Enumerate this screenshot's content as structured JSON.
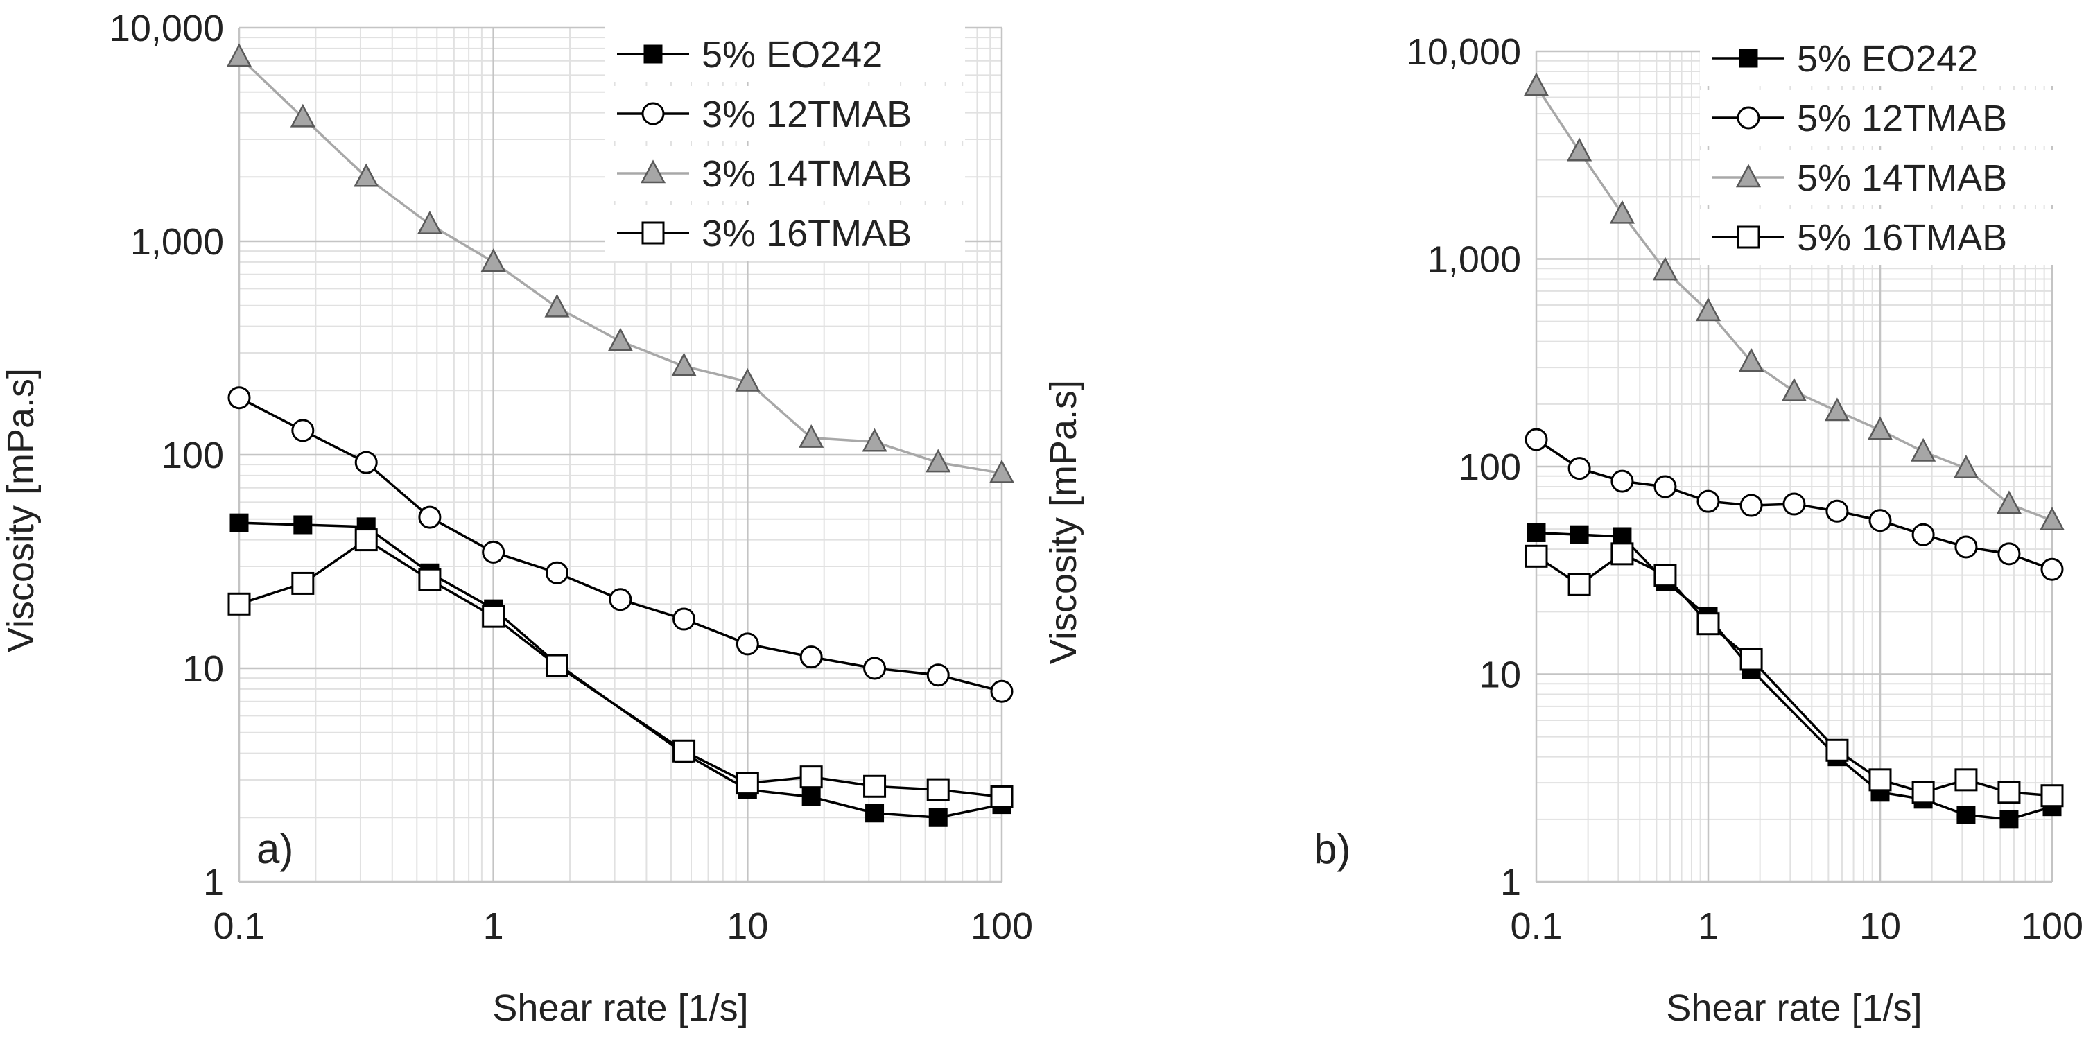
{
  "chart_data": [
    {
      "type": "line",
      "panel_label": "a)",
      "xscale": "log",
      "yscale": "log",
      "xlim": [
        0.1,
        100
      ],
      "ylim": [
        1,
        10000
      ],
      "xlabel": "Shear rate [1/s]",
      "ylabel": "Viscosity [mPa.s]",
      "xticks": [
        0.1,
        1,
        10,
        100
      ],
      "xtick_labels": [
        "0.1",
        "1",
        "10",
        "100"
      ],
      "yticks": [
        1,
        10,
        100,
        1000,
        10000
      ],
      "ytick_labels": [
        "1",
        "10",
        "100",
        "1,000",
        "10,000"
      ],
      "grid": true,
      "legend_position": "top-right",
      "x": [
        0.1,
        0.178,
        0.316,
        0.562,
        1,
        1.78,
        3.16,
        5.62,
        10,
        17.8,
        31.6,
        56.2,
        100
      ],
      "series": [
        {
          "name": "5% EO242",
          "marker": "filled-square",
          "values": [
            48,
            47,
            46,
            28,
            19,
            10.5,
            null,
            4.0,
            2.7,
            2.5,
            2.1,
            2.0,
            2.3
          ]
        },
        {
          "name": "3% 12TMAB",
          "marker": "open-circle",
          "values": [
            185,
            130,
            92,
            51,
            35,
            28,
            21,
            17,
            13,
            11.3,
            10,
            9.3,
            7.8
          ]
        },
        {
          "name": "3% 14TMAB",
          "marker": "gray-triangle",
          "values": [
            7300,
            3800,
            2000,
            1200,
            800,
            490,
            340,
            260,
            220,
            120,
            115,
            92,
            82
          ]
        },
        {
          "name": "3% 16TMAB",
          "marker": "open-square",
          "values": [
            20,
            25,
            40,
            26,
            17.5,
            10.3,
            null,
            4.1,
            2.9,
            3.1,
            2.8,
            2.7,
            2.5
          ]
        }
      ]
    },
    {
      "type": "line",
      "panel_label": "b)",
      "xscale": "log",
      "yscale": "log",
      "xlim": [
        0.1,
        100
      ],
      "ylim": [
        1,
        10000
      ],
      "xlabel": "Shear rate [1/s]",
      "ylabel": "Viscosity [mPa.s]",
      "xticks": [
        0.1,
        1,
        10,
        100
      ],
      "xtick_labels": [
        "0.1",
        "1",
        "10",
        "100"
      ],
      "yticks": [
        1,
        10,
        100,
        1000,
        10000
      ],
      "ytick_labels": [
        "1",
        "10",
        "100",
        "1,000",
        "10,000"
      ],
      "grid": true,
      "legend_position": "top-right",
      "x": [
        0.1,
        0.178,
        0.316,
        0.562,
        1,
        1.78,
        3.16,
        5.62,
        10,
        17.8,
        31.6,
        56.2,
        100
      ],
      "series": [
        {
          "name": "5% EO242",
          "marker": "filled-square",
          "values": [
            48,
            47,
            46,
            28,
            19,
            10.5,
            null,
            4.0,
            2.7,
            2.5,
            2.1,
            2.0,
            2.3
          ]
        },
        {
          "name": "5% 12TMAB",
          "marker": "open-circle",
          "values": [
            135,
            98,
            85,
            80,
            68,
            65,
            66,
            61,
            55,
            47,
            41,
            38,
            32
          ]
        },
        {
          "name": "5% 14TMAB",
          "marker": "gray-triangle",
          "values": [
            6800,
            3300,
            1650,
            880,
            560,
            320,
            230,
            185,
            150,
            118,
            98,
            66,
            55
          ]
        },
        {
          "name": "5% 16TMAB",
          "marker": "open-square",
          "values": [
            37,
            27,
            38,
            30,
            17.5,
            11.8,
            null,
            4.3,
            3.1,
            2.7,
            3.1,
            2.7,
            2.6
          ]
        }
      ]
    }
  ]
}
